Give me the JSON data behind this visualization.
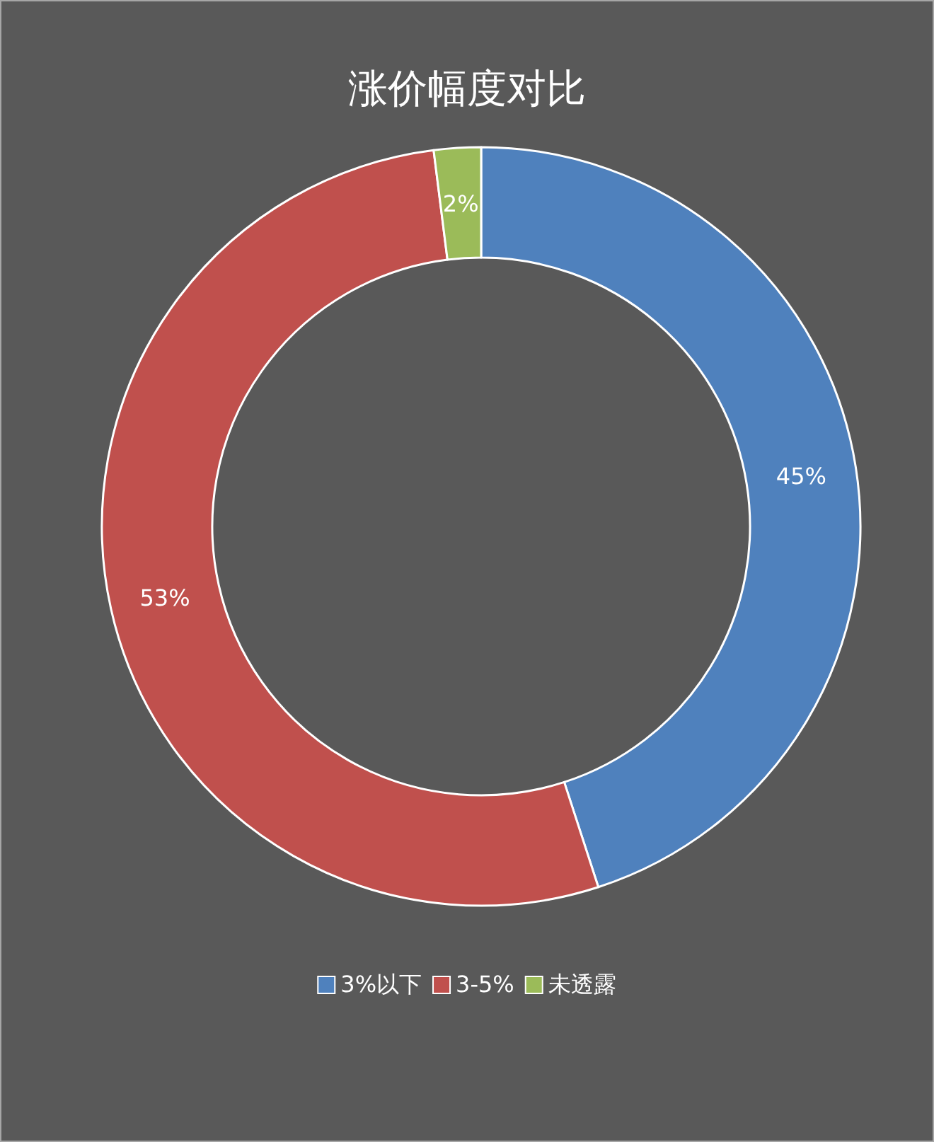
{
  "chart_data": {
    "type": "donut",
    "title": "涨价幅度对比",
    "categories": [
      "3%以下",
      "3-5%",
      "未透露"
    ],
    "values": [
      45,
      53,
      2
    ],
    "colors": [
      "#4f81bd",
      "#c0504d",
      "#9bbb59"
    ],
    "value_labels": [
      "45%",
      "53%",
      "2%"
    ],
    "legend": "bottom"
  }
}
